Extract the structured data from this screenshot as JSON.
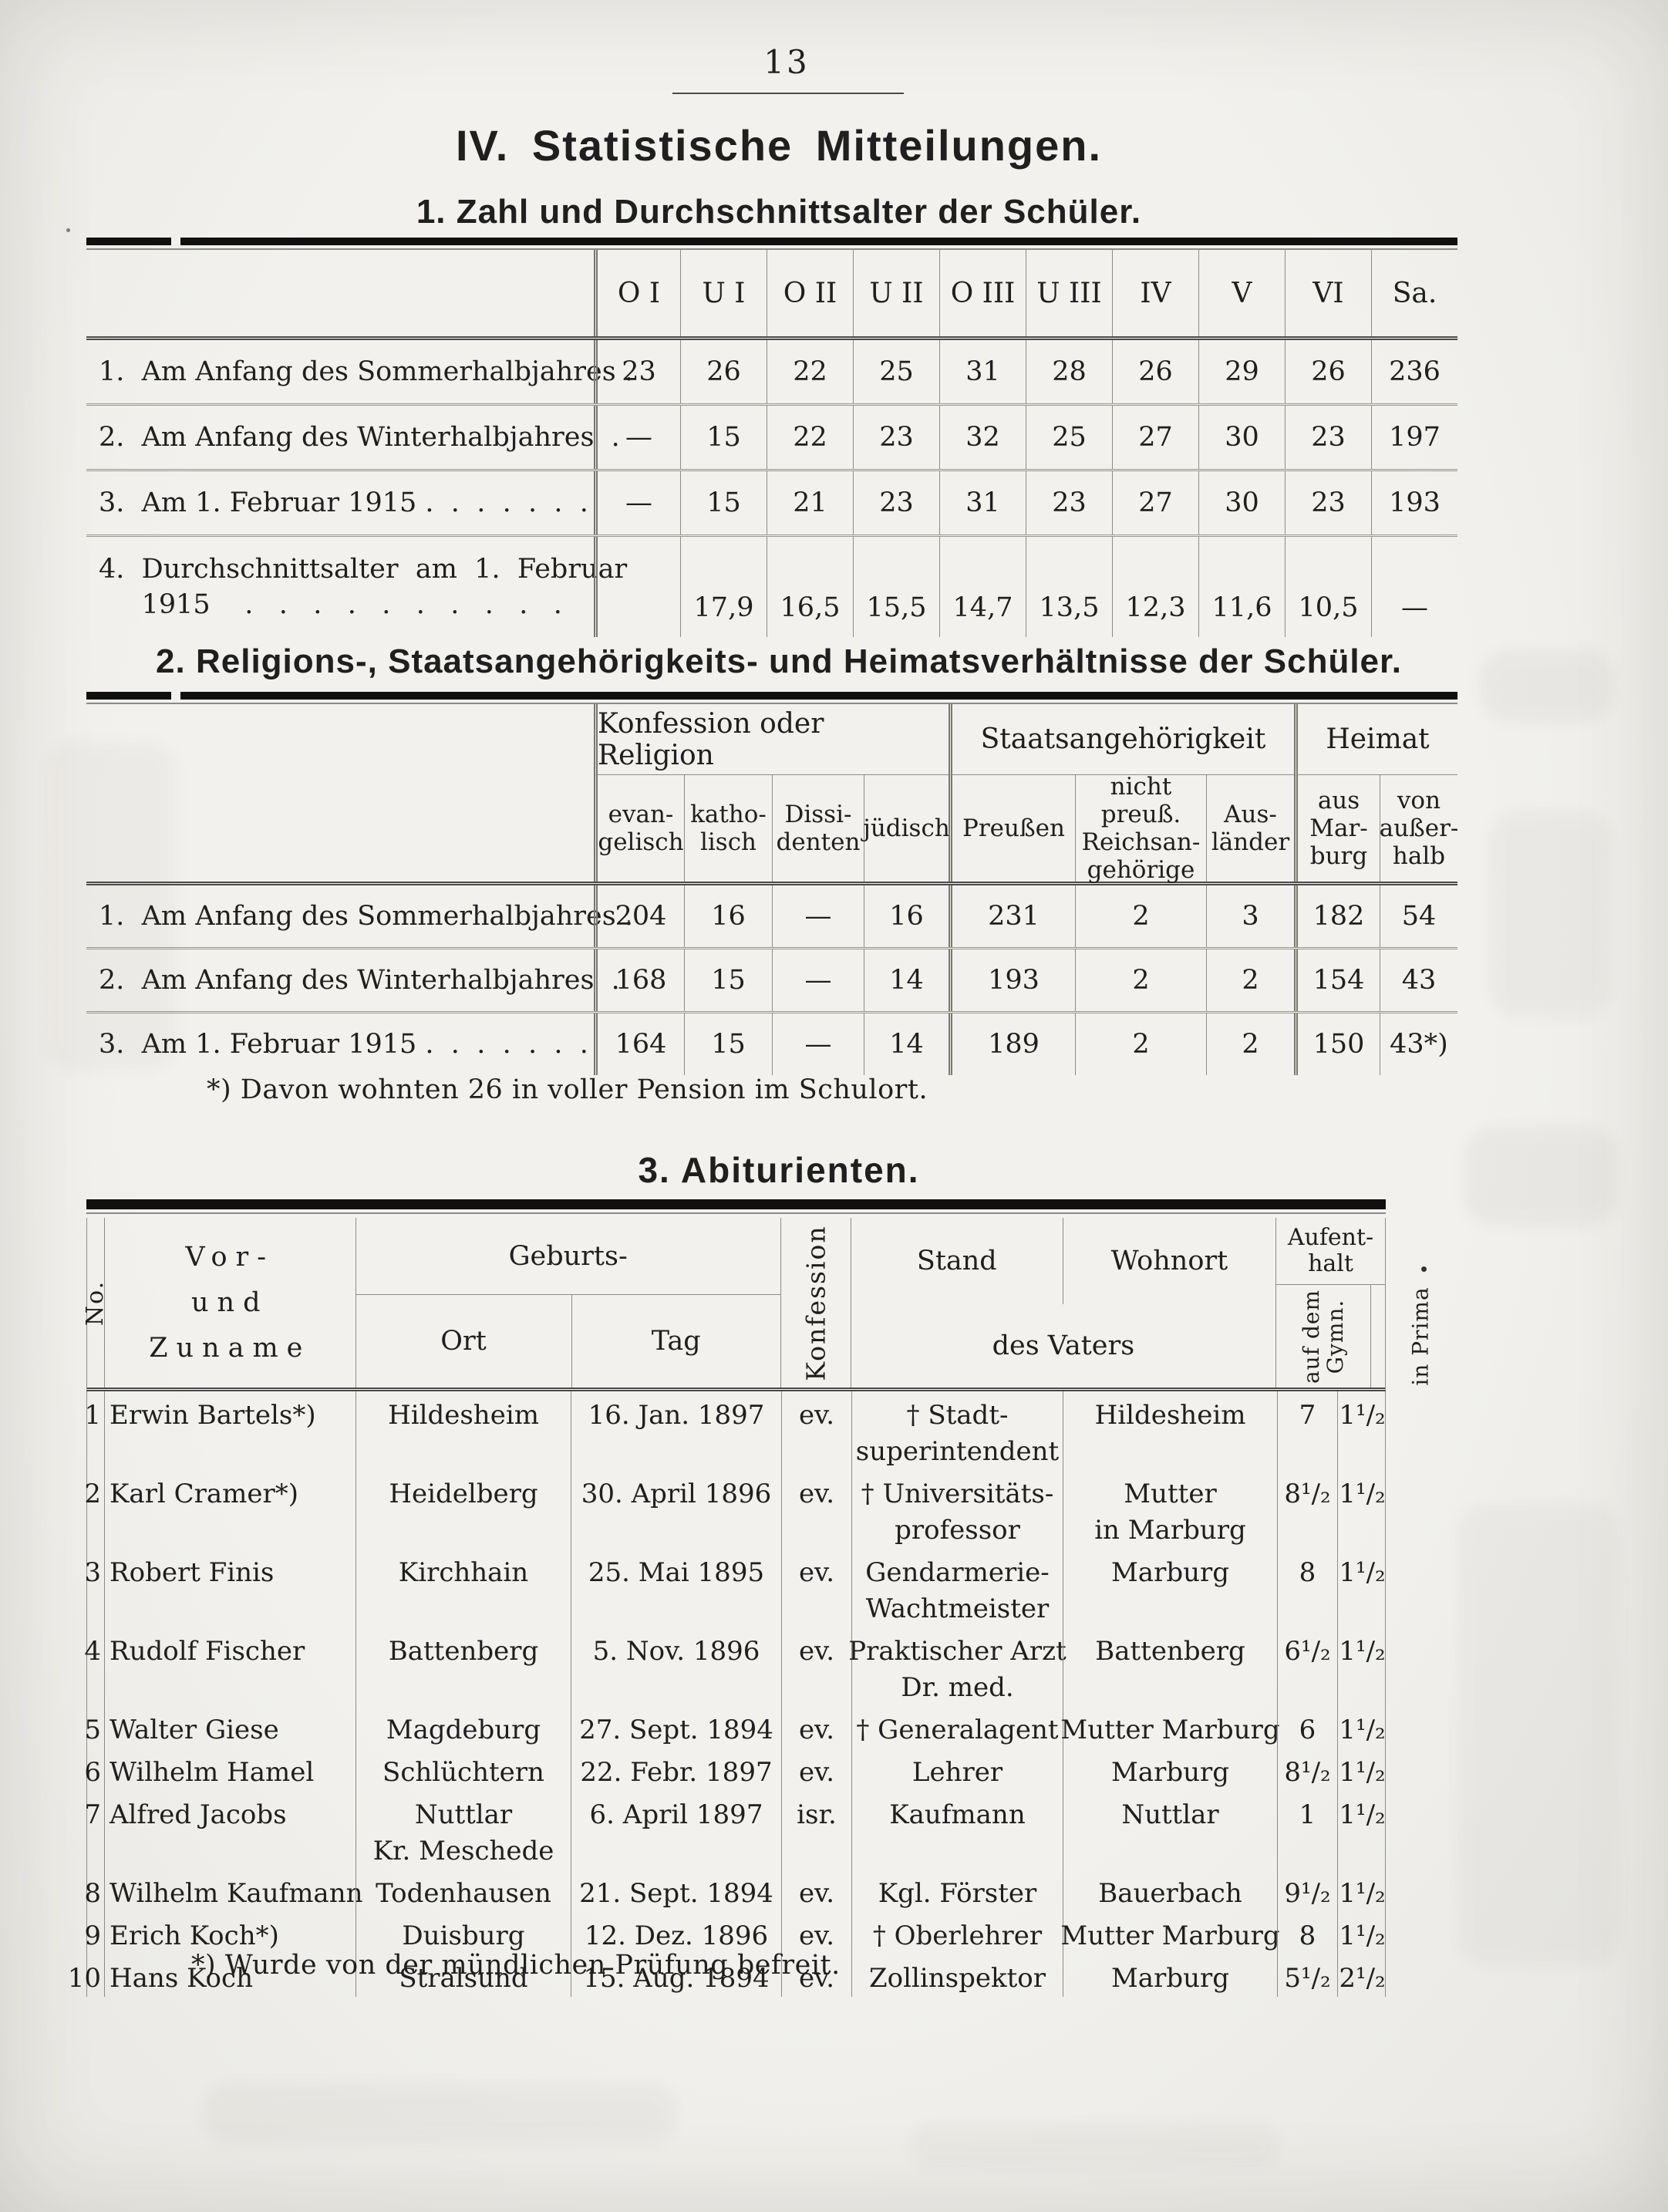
{
  "page_number": "13",
  "heading": {
    "title": "IV.  Statistische  Mitteilungen.",
    "subtitle": "1.  Zahl und Durchschnittsalter der Schüler."
  },
  "table1": {
    "columns": [
      "O I",
      "U I",
      "O II",
      "U II",
      "O III",
      "U III",
      "IV",
      "V",
      "VI",
      "Sa."
    ],
    "rows": [
      {
        "label": [
          "1.  Am Anfang des Sommerhalbjahres ."
        ],
        "values": [
          "23",
          "26",
          "22",
          "25",
          "31",
          "28",
          "26",
          "29",
          "26",
          "236"
        ]
      },
      {
        "label": [
          "2.  Am Anfang des Winterhalbjahres  ."
        ],
        "values": [
          "—",
          "15",
          "22",
          "23",
          "32",
          "25",
          "27",
          "30",
          "23",
          "197"
        ]
      },
      {
        "label": [
          "3.  Am 1. Februar 1915 .  .  .  .  .  .  ."
        ],
        "values": [
          "—",
          "15",
          "21",
          "23",
          "31",
          "23",
          "27",
          "30",
          "23",
          "193"
        ]
      },
      {
        "label": [
          "4.  Durchschnittsalter  am  1.  Februar",
          "     1915    .   .   .   .   .   .   .   .   .   ."
        ],
        "values": [
          "",
          "17,9",
          "16,5",
          "15,5",
          "14,7",
          "13,5",
          "12,3",
          "11,6",
          "10,5",
          "—"
        ]
      }
    ]
  },
  "section2": {
    "title": "2.  Religions-, Staatsangehörigkeits- und Heimatsverhältnisse der Schüler."
  },
  "table2": {
    "groups": [
      {
        "label": "Konfession oder Religion"
      },
      {
        "label": "Staatsangehörigkeit"
      },
      {
        "label": "Heimat"
      }
    ],
    "columns": [
      [
        "evan-",
        "gelisch"
      ],
      [
        "katho-",
        "lisch"
      ],
      [
        "Dissi-",
        "denten"
      ],
      [
        "jüdisch"
      ],
      [
        "Preußen"
      ],
      [
        "nicht",
        "preuß.",
        "Reichsan-",
        "gehörige"
      ],
      [
        "Aus-",
        "länder"
      ],
      [
        "aus",
        "Mar-",
        "burg"
      ],
      [
        "von",
        "außer-",
        "halb"
      ]
    ],
    "rows": [
      {
        "label": [
          "1.  Am Anfang des Sommerhalbjahres ."
        ],
        "values": [
          "204",
          "16",
          "—",
          "16",
          "231",
          "2",
          "3",
          "182",
          "54"
        ]
      },
      {
        "label": [
          "2.  Am Anfang des Winterhalbjahres  ."
        ],
        "values": [
          "168",
          "15",
          "—",
          "14",
          "193",
          "2",
          "2",
          "154",
          "43"
        ]
      },
      {
        "label": [
          "3.  Am 1. Februar 1915 .  .  .  .  .  .  ."
        ],
        "values": [
          "164",
          "15",
          "—",
          "14",
          "189",
          "2",
          "2",
          "150",
          "43*)"
        ]
      }
    ],
    "footnote": "*)  Davon wohnten 26 in voller Pension im Schulort."
  },
  "section3": {
    "title": "3.  Abiturienten."
  },
  "table3": {
    "header": {
      "no": "No.",
      "name_lines": [
        "Vor-",
        "und",
        "Zuname"
      ],
      "geburts": "Geburts-",
      "ort": "Ort",
      "tag": "Tag",
      "konfession": "Konfession",
      "stand": "Stand",
      "wohnort": "Wohnort",
      "des_vaters": "des  Vaters",
      "aufenthalt_lines": [
        "Aufent-",
        "halt"
      ],
      "gymn_lines": [
        "auf dem",
        "Gymn."
      ],
      "prima": "in Prima"
    },
    "rows": [
      {
        "no": "1",
        "name": "Erwin Bartels*)",
        "ort": [
          "Hildesheim"
        ],
        "tag": "16. Jan. 1897",
        "konf": "ev.",
        "stand": [
          "† Stadt-",
          "superintendent"
        ],
        "wohnort": [
          "Hildesheim"
        ],
        "gymn": "7",
        "prima": "1¹/₂"
      },
      {
        "no": "2",
        "name": "Karl Cramer*)",
        "ort": [
          "Heidelberg"
        ],
        "tag": "30. April 1896",
        "konf": "ev.",
        "stand": [
          "† Universitäts-",
          "professor"
        ],
        "wohnort": [
          "Mutter",
          "in Marburg"
        ],
        "gymn": "8¹/₂",
        "prima": "1¹/₂"
      },
      {
        "no": "3",
        "name": "Robert Finis",
        "ort": [
          "Kirchhain"
        ],
        "tag": "25. Mai 1895",
        "konf": "ev.",
        "stand": [
          "Gendarmerie-",
          "Wachtmeister"
        ],
        "wohnort": [
          "Marburg"
        ],
        "gymn": "8",
        "prima": "1¹/₂"
      },
      {
        "no": "4",
        "name": "Rudolf Fischer",
        "ort": [
          "Battenberg"
        ],
        "tag": "5. Nov. 1896",
        "konf": "ev.",
        "stand": [
          "Praktischer Arzt",
          "Dr. med."
        ],
        "wohnort": [
          "Battenberg"
        ],
        "gymn": "6¹/₂",
        "prima": "1¹/₂"
      },
      {
        "no": "5",
        "name": "Walter Giese",
        "ort": [
          "Magdeburg"
        ],
        "tag": "27. Sept. 1894",
        "konf": "ev.",
        "stand": [
          "† Generalagent"
        ],
        "wohnort": [
          "Mutter Marburg"
        ],
        "gymn": "6",
        "prima": "1¹/₂"
      },
      {
        "no": "6",
        "name": "Wilhelm Hamel",
        "ort": [
          "Schlüchtern"
        ],
        "tag": "22. Febr. 1897",
        "konf": "ev.",
        "stand": [
          "Lehrer"
        ],
        "wohnort": [
          "Marburg"
        ],
        "gymn": "8¹/₂",
        "prima": "1¹/₂"
      },
      {
        "no": "7",
        "name": "Alfred Jacobs",
        "ort": [
          "Nuttlar",
          "Kr. Meschede"
        ],
        "tag": "6. April 1897",
        "konf": "isr.",
        "stand": [
          "Kaufmann"
        ],
        "wohnort": [
          "Nuttlar"
        ],
        "gymn": "1",
        "prima": "1¹/₂"
      },
      {
        "no": "8",
        "name": "Wilhelm Kaufmann",
        "ort": [
          "Todenhausen"
        ],
        "tag": "21. Sept. 1894",
        "konf": "ev.",
        "stand": [
          "Kgl. Förster"
        ],
        "wohnort": [
          "Bauerbach"
        ],
        "gymn": "9¹/₂",
        "prima": "1¹/₂"
      },
      {
        "no": "9",
        "name": "Erich Koch*)",
        "ort": [
          "Duisburg"
        ],
        "tag": "12. Dez. 1896",
        "konf": "ev.",
        "stand": [
          "† Oberlehrer"
        ],
        "wohnort": [
          "Mutter Marburg"
        ],
        "gymn": "8",
        "prima": "1¹/₂"
      },
      {
        "no": "10",
        "name": "Hans Koch",
        "ort": [
          "Stralsund"
        ],
        "tag": "15. Aug. 1894",
        "konf": "ev.",
        "stand": [
          "Zollinspektor"
        ],
        "wohnort": [
          "Marburg"
        ],
        "gymn": "5¹/₂",
        "prima": "2¹/₂"
      }
    ],
    "footnote": "*)  Wurde von der mündlichen Prüfung befreit."
  }
}
